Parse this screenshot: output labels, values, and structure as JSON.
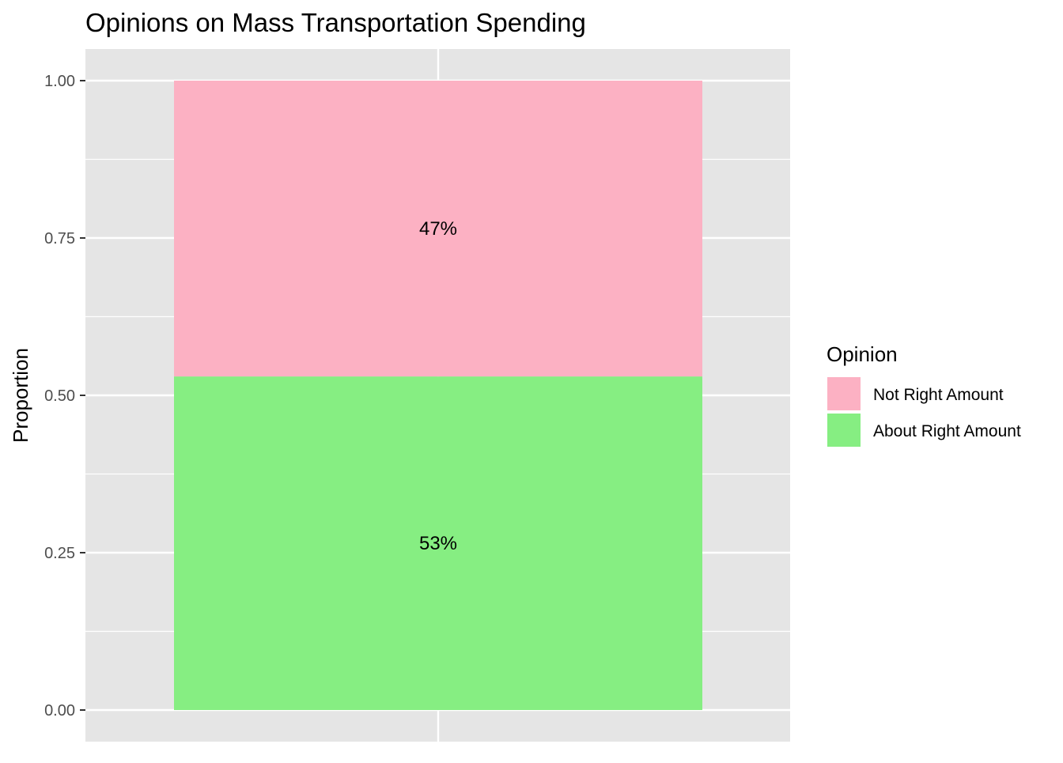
{
  "chart_data": {
    "type": "bar",
    "stacked": true,
    "title": "Opinions on Mass Transportation Spending",
    "xlabel": "",
    "ylabel": "Proportion",
    "ylim": [
      0,
      1
    ],
    "y_ticks": [
      "0.00",
      "0.25",
      "0.50",
      "0.75",
      "1.00"
    ],
    "y_tick_values": [
      0,
      0.25,
      0.5,
      0.75,
      1.0
    ],
    "grid": true,
    "categories": [
      ""
    ],
    "series": [
      {
        "name": "About Right Amount",
        "values": [
          0.53
        ],
        "color": "#86ee82",
        "label": "53%"
      },
      {
        "name": "Not Right Amount",
        "values": [
          0.47
        ],
        "color": "#fcb1c3",
        "label": "47%"
      }
    ],
    "legend": {
      "title": "Opinion",
      "position": "right",
      "entries": [
        {
          "name": "Not Right Amount",
          "color": "#fcb1c3"
        },
        {
          "name": "About Right Amount",
          "color": "#86ee82"
        }
      ]
    },
    "colors": {
      "panel_background": "#e5e5e5",
      "grid": "#ffffff"
    }
  }
}
